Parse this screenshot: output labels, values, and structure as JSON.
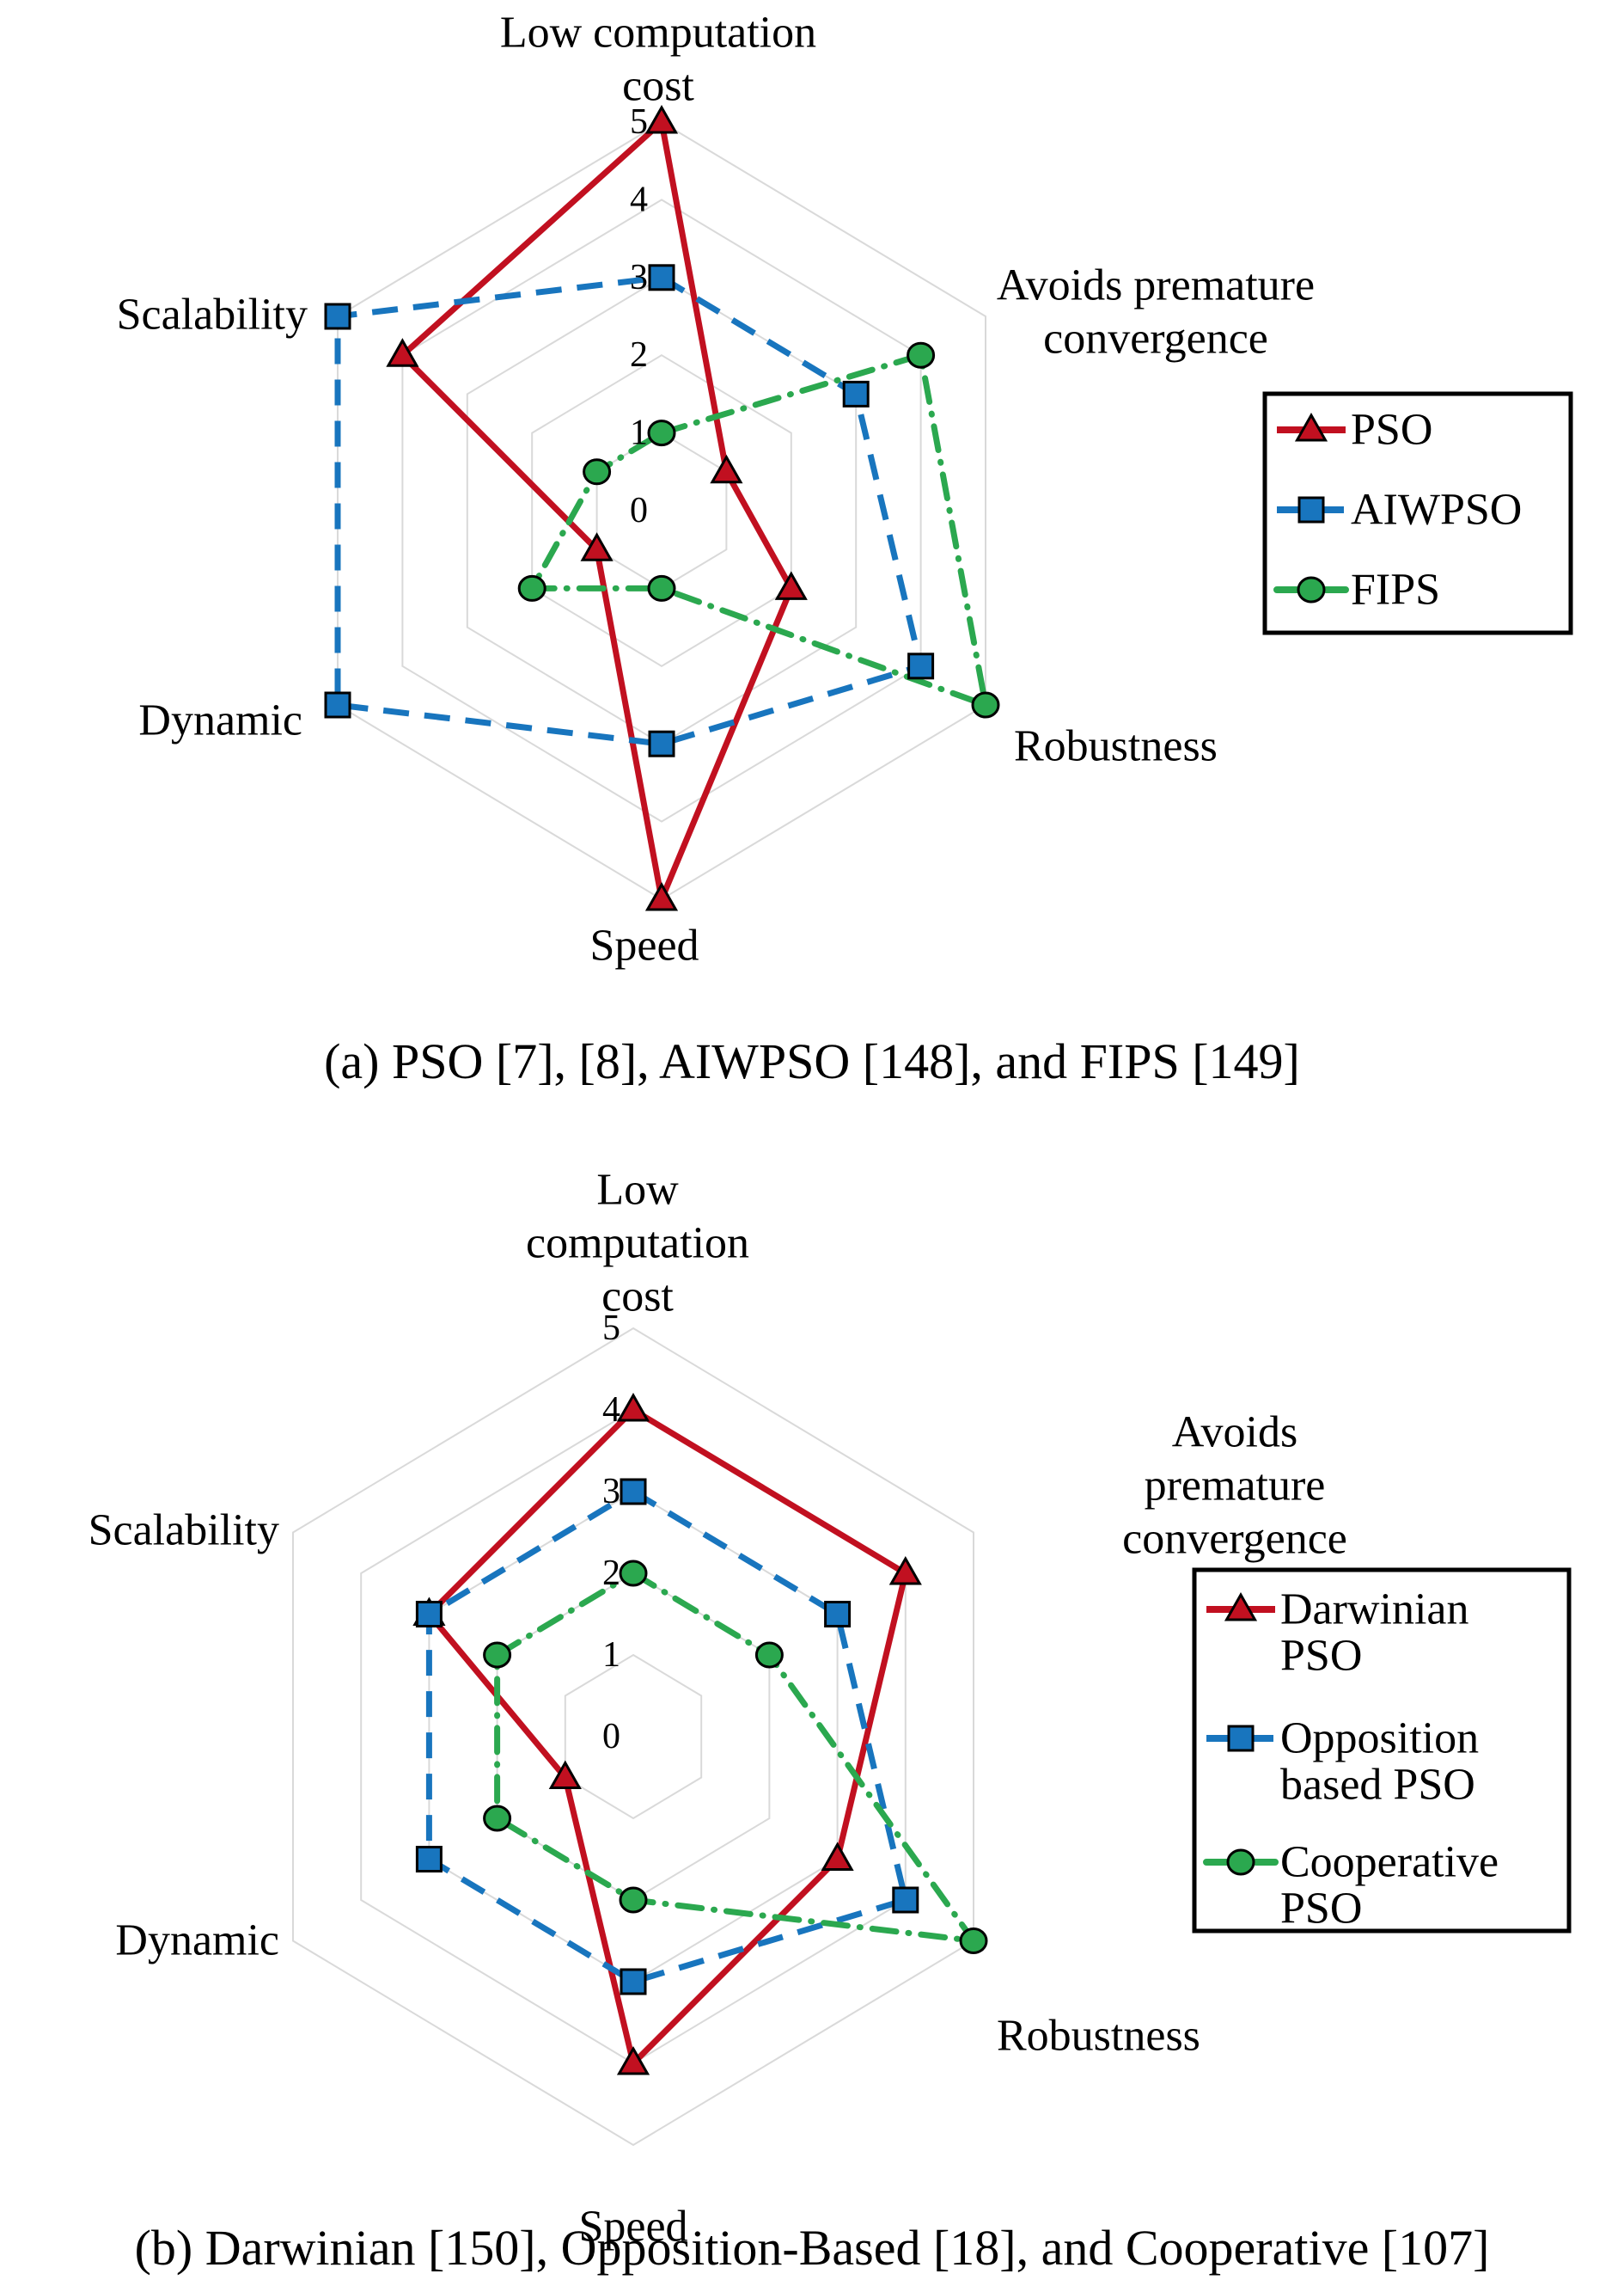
{
  "figure": {
    "background": "#FFFFFF",
    "text_color": "#000000"
  },
  "colors": {
    "red_series": "#C11020",
    "blue_series": "#1875BE",
    "green_series": "#2BA84F",
    "grid": "#D9D9D9",
    "legend_border": "#000000"
  },
  "chart_data": [
    {
      "type": "radar",
      "caption": "(a) PSO [7], [8], AIWPSO [148], and FIPS [149]",
      "axis_max": 5,
      "tick_labels": [
        "0",
        "1",
        "2",
        "3",
        "4",
        "5"
      ],
      "grid": "hexagonal rings, no radial spokes",
      "legend_position": "right",
      "axes": [
        {
          "name": "Low computation cost",
          "lines": [
            "Low computation",
            "cost"
          ]
        },
        {
          "name": "Avoids premature convergence",
          "lines": [
            "Avoids premature",
            "convergence"
          ]
        },
        {
          "name": "Robustness",
          "lines": [
            "Robustness"
          ]
        },
        {
          "name": "Speed",
          "lines": [
            "Speed"
          ]
        },
        {
          "name": "Dynamic",
          "lines": [
            "Dynamic"
          ]
        },
        {
          "name": "Scalability",
          "lines": [
            "Scalability"
          ]
        }
      ],
      "series": [
        {
          "name": "PSO",
          "legend_lines": [
            "PSO"
          ],
          "color": "#C11020",
          "marker": "triangle",
          "line_style": "solid",
          "values": [
            5,
            1,
            2,
            5,
            1,
            4
          ]
        },
        {
          "name": "AIWPSO",
          "legend_lines": [
            "AIWPSO"
          ],
          "color": "#1875BE",
          "marker": "square",
          "line_style": "dashed",
          "values": [
            3,
            3,
            4,
            3,
            5,
            5
          ]
        },
        {
          "name": "FIPS",
          "legend_lines": [
            "FIPS"
          ],
          "color": "#2BA84F",
          "marker": "circle",
          "line_style": "dashdot",
          "values": [
            1,
            4,
            5,
            1,
            2,
            1
          ]
        }
      ]
    },
    {
      "type": "radar",
      "caption": "(b) Darwinian [150], Opposition-Based [18], and Cooperative [107]",
      "axis_max": 5,
      "tick_labels": [
        "0",
        "1",
        "2",
        "3",
        "4",
        "5"
      ],
      "grid": "hexagonal rings, no radial spokes",
      "legend_position": "right",
      "axes": [
        {
          "name": "Low computation cost",
          "lines": [
            "Low",
            "computation",
            "cost"
          ]
        },
        {
          "name": "Avoids premature convergence",
          "lines": [
            "Avoids",
            "premature",
            "convergence"
          ]
        },
        {
          "name": "Robustness",
          "lines": [
            "Robustness"
          ]
        },
        {
          "name": "Speed",
          "lines": [
            "Speed"
          ]
        },
        {
          "name": "Dynamic",
          "lines": [
            "Dynamic"
          ]
        },
        {
          "name": "Scalability",
          "lines": [
            "Scalability"
          ]
        }
      ],
      "series": [
        {
          "name": "Darwinian PSO",
          "legend_lines": [
            "Darwinian",
            "PSO"
          ],
          "color": "#C11020",
          "marker": "triangle",
          "line_style": "solid",
          "values": [
            4,
            4,
            3,
            4,
            1,
            3
          ]
        },
        {
          "name": "Opposition based PSO",
          "legend_lines": [
            "Opposition",
            "based PSO"
          ],
          "color": "#1875BE",
          "marker": "square",
          "line_style": "dashed",
          "values": [
            3,
            3,
            4,
            3,
            3,
            3
          ]
        },
        {
          "name": "Cooperative PSO",
          "legend_lines": [
            "Cooperative",
            "PSO"
          ],
          "color": "#2BA84F",
          "marker": "circle",
          "line_style": "dashdot",
          "values": [
            2,
            2,
            5,
            2,
            2,
            2
          ]
        }
      ]
    }
  ]
}
